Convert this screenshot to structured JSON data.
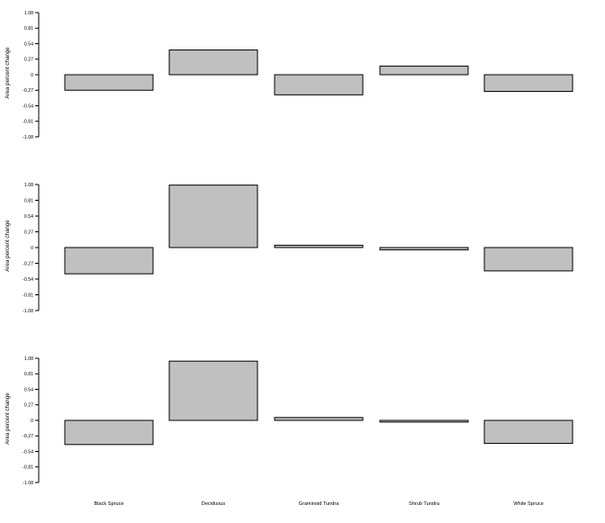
{
  "chart_data": [
    {
      "type": "bar",
      "ylabel": "Area percent change",
      "yticks": [
        "1.08",
        "0.81",
        "0.54",
        "0.27",
        "0",
        "-0.27",
        "-0.54",
        "-0.81",
        "-1.08"
      ],
      "ylim": [
        -1.08,
        1.08
      ],
      "categories": [
        "Black Spruce",
        "Deciduous",
        "Graminoid Tundra",
        "Shrub Tundra",
        "White Spruce"
      ],
      "values": [
        -0.27,
        0.43,
        -0.35,
        0.15,
        -0.29
      ]
    },
    {
      "type": "bar",
      "ylabel": "Area percent change",
      "yticks": [
        "1.08",
        "0.81",
        "0.54",
        "0.27",
        "0",
        "-0.27",
        "-0.54",
        "-0.81",
        "-1.08"
      ],
      "ylim": [
        -1.08,
        1.08
      ],
      "categories": [
        "Black Spruce",
        "Deciduous",
        "Graminoid Tundra",
        "Shrub Tundra",
        "White Spruce"
      ],
      "values": [
        -0.45,
        1.07,
        0.04,
        -0.04,
        -0.4
      ]
    },
    {
      "type": "bar",
      "ylabel": "Area percent change",
      "yticks": [
        "1.08",
        "0.81",
        "0.54",
        "0.27",
        "0",
        "-0.27",
        "-0.54",
        "-0.81",
        "-1.08"
      ],
      "ylim": [
        -1.08,
        1.08
      ],
      "categories": [
        "Black Spruce",
        "Deciduous",
        "Graminoid Tundra",
        "Shrub Tundra",
        "White Spruce"
      ],
      "values": [
        -0.42,
        1.03,
        0.05,
        -0.03,
        -0.4
      ]
    }
  ],
  "x_tick_labels": [
    "Black Spruce",
    "Deciduous",
    "Graminoid Tundra",
    "Shrub Tundra",
    "White Spruce"
  ],
  "colors": {
    "bar_fill": "#c0c0c0",
    "bar_stroke": "#000000",
    "axis": "#000000",
    "background": "#ffffff"
  }
}
